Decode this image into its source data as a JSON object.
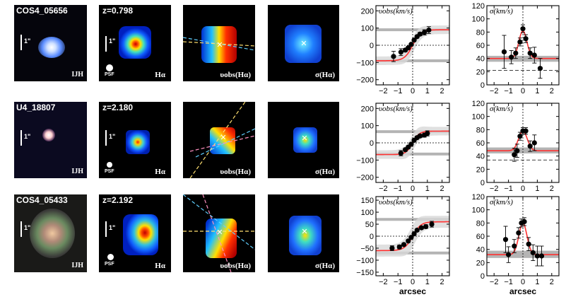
{
  "rows": [
    {
      "galaxy_id": "COS4_05656",
      "redshift_label": "z=0.798",
      "image_band": "IJH",
      "scale_label": "1\"",
      "psf_label": "PSF",
      "halpha_label": "Hα",
      "vel_label": "υobs(Hα)",
      "disp_label": "σ(Hα)"
    },
    {
      "galaxy_id": "U4_18807",
      "redshift_label": "z=2.180",
      "image_band": "IJH",
      "scale_label": "1\"",
      "psf_label": "PSF",
      "halpha_label": "Hα",
      "vel_label": "υobs(Hα)",
      "disp_label": "σ(Hα)"
    },
    {
      "galaxy_id": "COS4_05433",
      "redshift_label": "z=2.192",
      "image_band": "IJH",
      "scale_label": "1\"",
      "psf_label": "PSF",
      "halpha_label": "Hα",
      "vel_label": "υobs(Hα)",
      "disp_label": "σ(Hα)"
    }
  ],
  "colors": {
    "model": "#ff3030",
    "points": "#000000",
    "band": "#b4b4b4",
    "pa_line_a": "#ffe070",
    "pa_line_b": "#60d0ff",
    "pa_line_c": "#ff90c0"
  },
  "chart_data": [
    {
      "type": "scatter",
      "row": 0,
      "quantity": "velocity",
      "ylabel": "υobs(km/s)",
      "xlabel": "",
      "xlim": [
        -2.5,
        2.5
      ],
      "ylim": [
        -230,
        230
      ],
      "xticks": [
        -2,
        -1,
        0,
        1,
        2
      ],
      "yticks": [
        -200,
        -100,
        0,
        100,
        200
      ],
      "hlines": [
        90,
        -90
      ],
      "points": [
        {
          "x": -1.3,
          "y": -65,
          "err": 30
        },
        {
          "x": -0.8,
          "y": -40,
          "err": 20
        },
        {
          "x": -0.5,
          "y": -28,
          "err": 10
        },
        {
          "x": -0.3,
          "y": -15,
          "err": 8
        },
        {
          "x": -0.1,
          "y": 5,
          "err": 8
        },
        {
          "x": 0.1,
          "y": 30,
          "err": 8
        },
        {
          "x": 0.3,
          "y": 50,
          "err": 8
        },
        {
          "x": 0.5,
          "y": 65,
          "err": 10
        },
        {
          "x": 0.8,
          "y": 75,
          "err": 15
        },
        {
          "x": 1.1,
          "y": 88,
          "err": 20
        }
      ],
      "model": {
        "vmax": 90,
        "r0": 0.55
      }
    },
    {
      "type": "scatter",
      "row": 0,
      "quantity": "dispersion",
      "ylabel": "σ(km/s)",
      "xlabel": "",
      "xlim": [
        -2.5,
        2.5
      ],
      "ylim": [
        0,
        120
      ],
      "xticks": [
        -2,
        -1,
        0,
        1,
        2
      ],
      "yticks": [
        0,
        20,
        40,
        60,
        80,
        100,
        120
      ],
      "band": [
        35,
        44
      ],
      "dashed": 22,
      "points": [
        {
          "x": -1.3,
          "y": 50,
          "err": 25
        },
        {
          "x": -0.8,
          "y": 42,
          "err": 10
        },
        {
          "x": -0.5,
          "y": 48,
          "err": 8
        },
        {
          "x": -0.2,
          "y": 65,
          "err": 6
        },
        {
          "x": 0.0,
          "y": 85,
          "err": 6
        },
        {
          "x": 0.2,
          "y": 70,
          "err": 6
        },
        {
          "x": 0.5,
          "y": 48,
          "err": 8
        },
        {
          "x": 0.8,
          "y": 45,
          "err": 12
        },
        {
          "x": 1.2,
          "y": 25,
          "err": 15
        }
      ],
      "model": {
        "base": 40,
        "peak": 82,
        "w": 0.28
      }
    },
    {
      "type": "scatter",
      "row": 1,
      "quantity": "velocity",
      "ylabel": "υobs(km/s)",
      "xlabel": "",
      "xlim": [
        -2.5,
        2.5
      ],
      "ylim": [
        -230,
        230
      ],
      "xticks": [
        -2,
        -1,
        0,
        1,
        2
      ],
      "yticks": [
        -200,
        -100,
        0,
        100,
        200
      ],
      "hlines": [
        65,
        -65
      ],
      "points": [
        {
          "x": -0.8,
          "y": -60,
          "err": 15
        },
        {
          "x": -0.5,
          "y": -40,
          "err": 10
        },
        {
          "x": -0.3,
          "y": -25,
          "err": 8
        },
        {
          "x": -0.1,
          "y": -8,
          "err": 8
        },
        {
          "x": 0.1,
          "y": 15,
          "err": 8
        },
        {
          "x": 0.3,
          "y": 30,
          "err": 8
        },
        {
          "x": 0.5,
          "y": 40,
          "err": 10
        },
        {
          "x": 0.8,
          "y": 45,
          "err": 12
        },
        {
          "x": 1.0,
          "y": 55,
          "err": 15
        }
      ],
      "model": {
        "vmax": 68,
        "r0": 0.45
      }
    },
    {
      "type": "scatter",
      "row": 1,
      "quantity": "dispersion",
      "ylabel": "σ(km/s)",
      "xlabel": "",
      "xlim": [
        -2.5,
        2.5
      ],
      "ylim": [
        0,
        120
      ],
      "xticks": [
        -2,
        -1,
        0,
        1,
        2
      ],
      "yticks": [
        0,
        20,
        40,
        60,
        80,
        100,
        120
      ],
      "band": [
        44,
        53
      ],
      "dashed": 34,
      "points": [
        {
          "x": -0.6,
          "y": 42,
          "err": 10
        },
        {
          "x": -0.4,
          "y": 48,
          "err": 10
        },
        {
          "x": -0.2,
          "y": 70,
          "err": 6
        },
        {
          "x": 0.0,
          "y": 78,
          "err": 5
        },
        {
          "x": 0.2,
          "y": 78,
          "err": 5
        },
        {
          "x": 0.5,
          "y": 55,
          "err": 8
        },
        {
          "x": 0.8,
          "y": 60,
          "err": 12
        }
      ],
      "model": {
        "base": 48,
        "peak": 78,
        "w": 0.3
      }
    },
    {
      "type": "scatter",
      "row": 2,
      "quantity": "velocity",
      "ylabel": "υobs(km/s)",
      "xlabel": "arcsec",
      "xlim": [
        -2.5,
        2.5
      ],
      "ylim": [
        -165,
        165
      ],
      "xticks": [
        -2,
        -1,
        0,
        1,
        2
      ],
      "yticks": [
        -150,
        -100,
        -50,
        0,
        50,
        100,
        150
      ],
      "hlines": [
        70,
        -70
      ],
      "points": [
        {
          "x": -1.4,
          "y": -50,
          "err": 10
        },
        {
          "x": -0.9,
          "y": -45,
          "err": 8
        },
        {
          "x": -0.6,
          "y": -35,
          "err": 6
        },
        {
          "x": -0.3,
          "y": -20,
          "err": 6
        },
        {
          "x": -0.1,
          "y": -5,
          "err": 5
        },
        {
          "x": 0.1,
          "y": 10,
          "err": 5
        },
        {
          "x": 0.3,
          "y": 25,
          "err": 5
        },
        {
          "x": 0.6,
          "y": 35,
          "err": 6
        },
        {
          "x": 0.9,
          "y": 40,
          "err": 8
        },
        {
          "x": 1.3,
          "y": 50,
          "err": 12
        }
      ],
      "model": {
        "vmax": 60,
        "r0": 0.55
      }
    },
    {
      "type": "scatter",
      "row": 2,
      "quantity": "dispersion",
      "ylabel": "σ(km/s)",
      "xlabel": "arcsec",
      "xlim": [
        -2.5,
        2.5
      ],
      "ylim": [
        0,
        120
      ],
      "xticks": [
        -2,
        -1,
        0,
        1,
        2
      ],
      "yticks": [
        0,
        20,
        40,
        60,
        80,
        100,
        120
      ],
      "band": [
        27,
        38
      ],
      "dashed": null,
      "points": [
        {
          "x": -1.2,
          "y": 55,
          "err": 20
        },
        {
          "x": -1.0,
          "y": 32,
          "err": 12
        },
        {
          "x": -0.6,
          "y": 45,
          "err": 10
        },
        {
          "x": -0.3,
          "y": 65,
          "err": 8
        },
        {
          "x": -0.1,
          "y": 80,
          "err": 6
        },
        {
          "x": 0.1,
          "y": 82,
          "err": 6
        },
        {
          "x": 0.4,
          "y": 48,
          "err": 10
        },
        {
          "x": 0.7,
          "y": 35,
          "err": 12
        },
        {
          "x": 1.0,
          "y": 30,
          "err": 15
        },
        {
          "x": 1.3,
          "y": 30,
          "err": 15
        }
      ],
      "model": {
        "base": 32,
        "peak": 80,
        "w": 0.28
      }
    }
  ]
}
